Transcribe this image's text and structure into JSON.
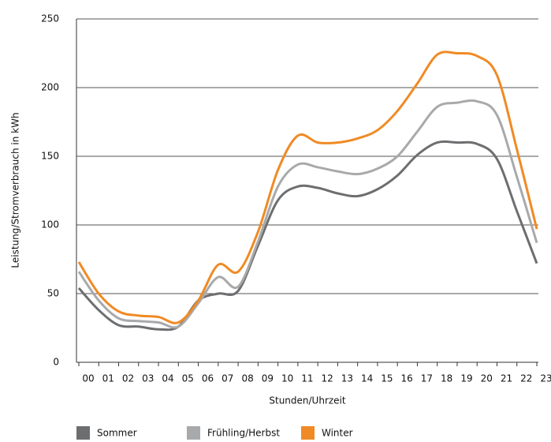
{
  "chart_data": {
    "type": "line",
    "y_label": "Leistung/Stromverbrauch in kWh",
    "x_label": "Stunden/Uhrzeit",
    "categories": [
      "00",
      "01",
      "02",
      "03",
      "04",
      "05",
      "06",
      "07",
      "08",
      "09",
      "10",
      "11",
      "12",
      "13",
      "14",
      "15",
      "16",
      "17",
      "18",
      "19",
      "20",
      "21",
      "22",
      "23"
    ],
    "ylim": [
      0,
      250
    ],
    "yticks": [
      0,
      50,
      100,
      150,
      200,
      250
    ],
    "grid": true,
    "series": [
      {
        "name": "Sommer",
        "color": "#6d6e70",
        "values": [
          54,
          38,
          27,
          26,
          24,
          26,
          45,
          50,
          52,
          85,
          118,
          128,
          127,
          123,
          121,
          126,
          136,
          151,
          160,
          160,
          159,
          148,
          110,
          72
        ]
      },
      {
        "name": "Frühling/Herbst",
        "color": "#a8a9ab",
        "values": [
          66,
          45,
          32,
          30,
          29,
          26,
          43,
          62,
          55,
          88,
          128,
          144,
          142,
          139,
          137,
          141,
          150,
          168,
          186,
          189,
          190,
          180,
          135,
          87
        ]
      },
      {
        "name": "Winter",
        "color": "#f08a24",
        "values": [
          73,
          50,
          37,
          34,
          33,
          29,
          45,
          71,
          66,
          95,
          140,
          165,
          160,
          160,
          163,
          169,
          183,
          203,
          224,
          225,
          223,
          209,
          155,
          97
        ]
      }
    ]
  }
}
